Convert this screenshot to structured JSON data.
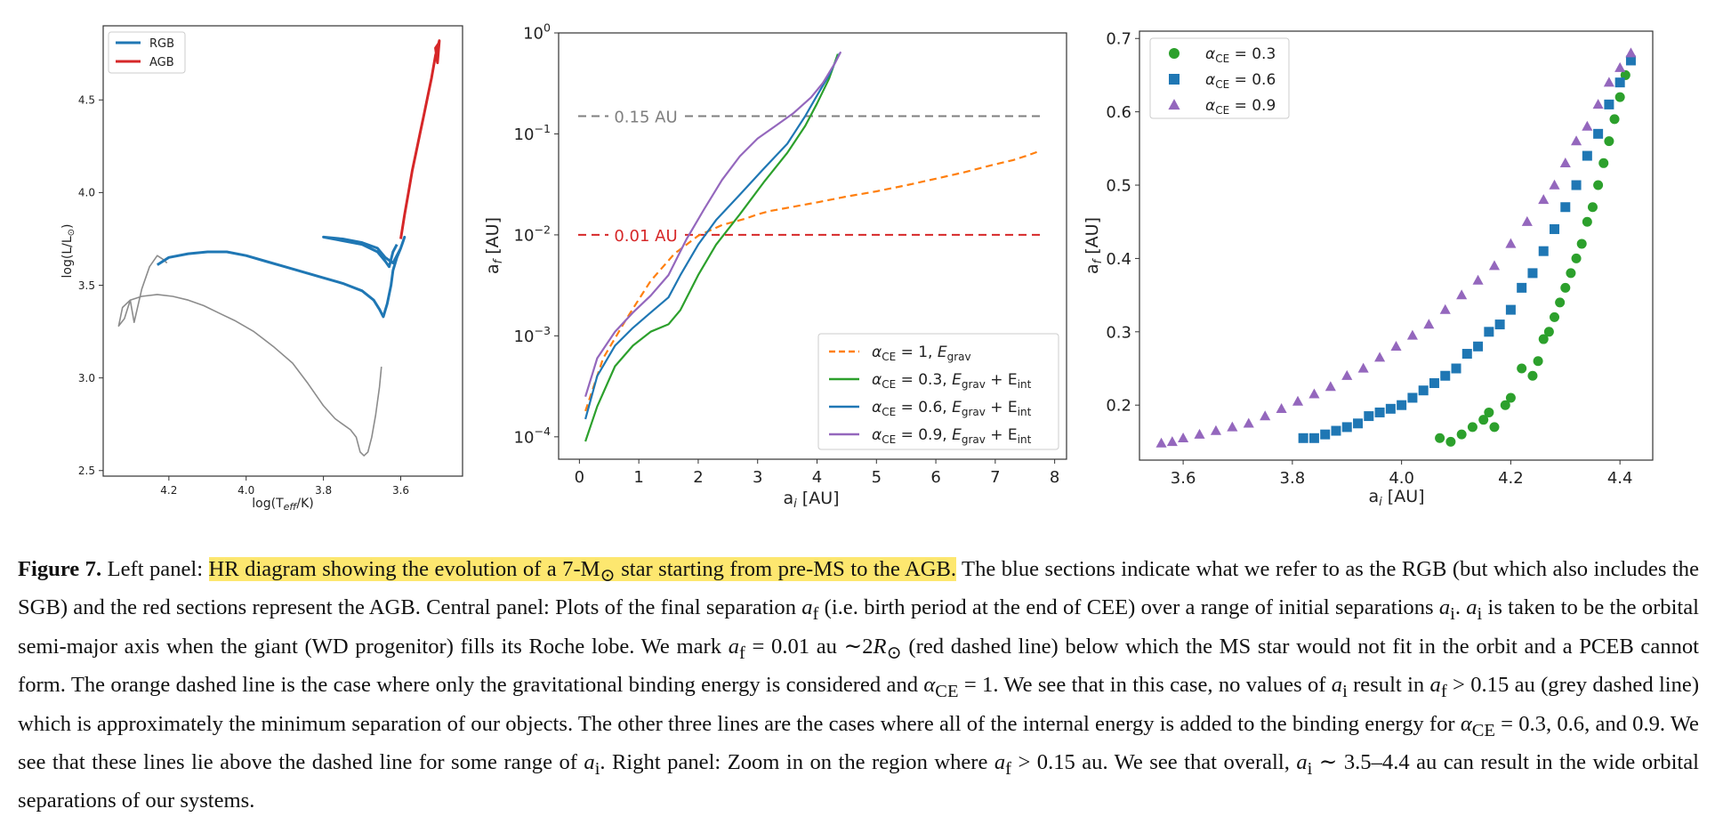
{
  "chart_data": [
    {
      "type": "line",
      "panel": "left",
      "xlabel": "log(T",
      "xlabel_sub": "eff",
      "xlabel_end": "/K)",
      "ylabel": "log(L/L",
      "ylabel_end": ")",
      "xlim": [
        4.37,
        3.44
      ],
      "ylim": [
        2.47,
        4.9
      ],
      "x_axis_inverted": true,
      "xticks": [
        4.2,
        4.0,
        3.8,
        3.6
      ],
      "xtick_labels": [
        "4.2",
        "4.0",
        "3.8",
        "3.6"
      ],
      "yticks": [
        2.5,
        3.0,
        3.5,
        4.0,
        4.5
      ],
      "ytick_labels": [
        "2.5",
        "3.0",
        "3.5",
        "4.0",
        "4.5"
      ],
      "legend": {
        "position": "upper-left",
        "entries": [
          {
            "label": "RGB",
            "color": "#1f77b4"
          },
          {
            "label": "AGB",
            "color": "#d62728"
          }
        ]
      },
      "series": [
        {
          "name": "",
          "color": "#8c8c8c",
          "x": [
            3.65,
            3.655,
            3.665,
            3.675,
            3.685,
            3.695,
            3.705,
            3.715,
            3.73,
            3.75,
            3.77,
            3.8,
            3.84,
            3.88,
            3.93,
            3.98,
            4.03,
            4.07,
            4.11,
            4.15,
            4.19,
            4.23,
            4.27,
            4.3,
            4.32,
            4.33,
            4.315,
            4.3,
            4.29,
            4.27,
            4.25,
            4.23,
            4.215,
            4.205
          ],
          "y": [
            3.06,
            2.95,
            2.8,
            2.68,
            2.6,
            2.58,
            2.6,
            2.68,
            2.72,
            2.75,
            2.78,
            2.85,
            2.97,
            3.08,
            3.17,
            3.25,
            3.31,
            3.35,
            3.39,
            3.42,
            3.44,
            3.45,
            3.44,
            3.42,
            3.38,
            3.28,
            3.32,
            3.42,
            3.3,
            3.48,
            3.6,
            3.66,
            3.64,
            3.62
          ]
        },
        {
          "name": "RGB",
          "color": "#1f77b4",
          "x": [
            4.23,
            4.2,
            4.15,
            4.1,
            4.05,
            4.0,
            3.95,
            3.9,
            3.85,
            3.8,
            3.75,
            3.7,
            3.67,
            3.655,
            3.645,
            3.635,
            3.625,
            3.62,
            3.61,
            3.6,
            3.595,
            3.59,
            3.6,
            3.62,
            3.64,
            3.66,
            3.7,
            3.75,
            3.8,
            3.75,
            3.7,
            3.66,
            3.64,
            3.63,
            3.62,
            3.61
          ],
          "y": [
            3.61,
            3.65,
            3.67,
            3.68,
            3.68,
            3.66,
            3.63,
            3.6,
            3.57,
            3.54,
            3.51,
            3.47,
            3.42,
            3.37,
            3.33,
            3.4,
            3.5,
            3.58,
            3.65,
            3.7,
            3.73,
            3.76,
            3.7,
            3.62,
            3.65,
            3.7,
            3.73,
            3.75,
            3.76,
            3.74,
            3.72,
            3.68,
            3.63,
            3.6,
            3.68,
            3.72
          ]
        },
        {
          "name": "AGB",
          "color": "#d62728",
          "x": [
            3.6,
            3.59,
            3.58,
            3.57,
            3.56,
            3.55,
            3.54,
            3.53,
            3.52,
            3.515,
            3.51,
            3.505,
            3.5,
            3.505,
            3.51,
            3.5
          ],
          "y": [
            3.75,
            3.88,
            4.0,
            4.12,
            4.22,
            4.32,
            4.42,
            4.52,
            4.62,
            4.68,
            4.74,
            4.78,
            4.82,
            4.7,
            4.78,
            4.81
          ]
        }
      ]
    },
    {
      "type": "line",
      "panel": "center",
      "xlabel": "a",
      "xlabel_sub": "i",
      "xlabel_end": " [AU]",
      "ylabel": "a",
      "ylabel_sub": "f",
      "ylabel_end": " [AU]",
      "y_scale": "log",
      "xlim": [
        -0.35,
        8.2
      ],
      "ylim": [
        6e-05,
        1.0
      ],
      "xticks": [
        0,
        1,
        2,
        3,
        4,
        5,
        6,
        7,
        8
      ],
      "xtick_labels": [
        "0",
        "1",
        "2",
        "3",
        "4",
        "5",
        "6",
        "7",
        "8"
      ],
      "yticks": [
        0.0001,
        0.001,
        0.01,
        0.1,
        1
      ],
      "ytick_labels": [
        {
          "base": "10",
          "exp": "−4"
        },
        {
          "base": "10",
          "exp": "−3"
        },
        {
          "base": "10",
          "exp": "−2"
        },
        {
          "base": "10",
          "exp": "−1"
        },
        {
          "base": "10",
          "exp": "0"
        }
      ],
      "hlines": [
        {
          "y": 0.15,
          "color": "#7f7f7f",
          "label": "0.15 AU"
        },
        {
          "y": 0.01,
          "color": "#d62728",
          "label": "0.01 AU"
        }
      ],
      "legend": {
        "position": "lower-right",
        "entries": [
          {
            "text": "α",
            "sub": "CE",
            "mid": " = 1, ",
            "e1": "E",
            "e1sub": "grav",
            "e2": "",
            "e2sub": ""
          },
          {
            "text": "α",
            "sub": "CE",
            "mid": " = 0.3, ",
            "e1": "E",
            "e1sub": "grav",
            "e2": " + E",
            "e2sub": "int"
          },
          {
            "text": "α",
            "sub": "CE",
            "mid": " = 0.6, ",
            "e1": "E",
            "e1sub": "grav",
            "e2": " + E",
            "e2sub": "int"
          },
          {
            "text": "α",
            "sub": "CE",
            "mid": " = 0.9, ",
            "e1": "E",
            "e1sub": "grav",
            "e2": " + E",
            "e2sub": "int"
          }
        ]
      },
      "series": [
        {
          "color": "#ff7f0e",
          "dashed": true,
          "x": [
            0.1,
            0.4,
            0.8,
            1.2,
            1.6,
            2.0,
            2.4,
            2.8,
            3.0,
            3.2,
            3.6,
            4.0,
            4.5,
            5.0,
            5.5,
            6.0,
            6.5,
            7.0,
            7.3,
            7.5,
            7.7
          ],
          "y": [
            0.00018,
            0.0006,
            0.0015,
            0.0035,
            0.0065,
            0.0098,
            0.0125,
            0.0145,
            0.016,
            0.0172,
            0.019,
            0.021,
            0.024,
            0.027,
            0.031,
            0.036,
            0.042,
            0.05,
            0.055,
            0.06,
            0.066
          ]
        },
        {
          "color": "#2ca02c",
          "x": [
            0.1,
            0.3,
            0.6,
            0.9,
            1.2,
            1.5,
            1.7,
            2.0,
            2.3,
            2.7,
            3.1,
            3.5,
            3.8,
            4.0,
            4.2,
            4.35
          ],
          "y": [
            9e-05,
            0.0002,
            0.0005,
            0.0008,
            0.0011,
            0.0013,
            0.0018,
            0.004,
            0.008,
            0.016,
            0.033,
            0.065,
            0.12,
            0.2,
            0.35,
            0.62
          ]
        },
        {
          "color": "#1f77b4",
          "x": [
            0.1,
            0.3,
            0.6,
            0.9,
            1.2,
            1.5,
            1.7,
            2.0,
            2.3,
            2.7,
            3.1,
            3.5,
            3.8,
            4.0,
            4.2,
            4.38
          ],
          "y": [
            0.00015,
            0.0004,
            0.0008,
            0.0012,
            0.0017,
            0.0024,
            0.004,
            0.008,
            0.014,
            0.025,
            0.045,
            0.08,
            0.15,
            0.24,
            0.38,
            0.63
          ]
        },
        {
          "color": "#9467bd",
          "x": [
            0.1,
            0.3,
            0.6,
            0.9,
            1.2,
            1.5,
            1.8,
            2.1,
            2.4,
            2.7,
            3.0,
            3.3,
            3.6,
            3.9,
            4.1,
            4.3,
            4.4
          ],
          "y": [
            0.00025,
            0.0006,
            0.0011,
            0.0017,
            0.0025,
            0.004,
            0.009,
            0.018,
            0.035,
            0.06,
            0.09,
            0.12,
            0.16,
            0.23,
            0.32,
            0.5,
            0.65
          ]
        }
      ]
    },
    {
      "type": "scatter",
      "panel": "right",
      "xlabel": "a",
      "xlabel_sub": "i",
      "xlabel_end": " [AU]",
      "ylabel": "a",
      "ylabel_sub": "f",
      "ylabel_end": " [AU]",
      "xlim": [
        3.52,
        4.46
      ],
      "ylim": [
        0.125,
        0.71
      ],
      "xticks": [
        3.6,
        3.8,
        4.0,
        4.2,
        4.4
      ],
      "xtick_labels": [
        "3.6",
        "3.8",
        "4.0",
        "4.2",
        "4.4"
      ],
      "yticks": [
        0.2,
        0.3,
        0.4,
        0.5,
        0.6,
        0.7
      ],
      "ytick_labels": [
        "0.2",
        "0.3",
        "0.4",
        "0.5",
        "0.6",
        "0.7"
      ],
      "legend": {
        "position": "upper-left",
        "entries": [
          {
            "text": "α",
            "sub": "CE",
            "mid": " = 0.3",
            "color": "#2ca02c",
            "marker": "circle"
          },
          {
            "text": "α",
            "sub": "CE",
            "mid": " = 0.6",
            "color": "#1f77b4",
            "marker": "square"
          },
          {
            "text": "α",
            "sub": "CE",
            "mid": " = 0.9",
            "color": "#9467bd",
            "marker": "triangle"
          }
        ]
      },
      "series": [
        {
          "color": "#2ca02c",
          "marker": "circle",
          "x": [
            4.07,
            4.09,
            4.11,
            4.13,
            4.15,
            4.16,
            4.17,
            4.19,
            4.2,
            4.22,
            4.24,
            4.25,
            4.26,
            4.27,
            4.28,
            4.29,
            4.3,
            4.31,
            4.32,
            4.33,
            4.34,
            4.35,
            4.36,
            4.37,
            4.38,
            4.39,
            4.4,
            4.41
          ],
          "y": [
            0.155,
            0.15,
            0.16,
            0.17,
            0.18,
            0.19,
            0.17,
            0.2,
            0.21,
            0.25,
            0.24,
            0.26,
            0.29,
            0.3,
            0.32,
            0.34,
            0.36,
            0.38,
            0.4,
            0.42,
            0.45,
            0.47,
            0.5,
            0.53,
            0.56,
            0.59,
            0.62,
            0.65
          ]
        },
        {
          "color": "#1f77b4",
          "marker": "square",
          "x": [
            3.82,
            3.84,
            3.86,
            3.88,
            3.9,
            3.92,
            3.94,
            3.96,
            3.98,
            4.0,
            4.02,
            4.04,
            4.06,
            4.08,
            4.1,
            4.12,
            4.14,
            4.16,
            4.18,
            4.2,
            4.22,
            4.24,
            4.26,
            4.28,
            4.3,
            4.32,
            4.34,
            4.36,
            4.38,
            4.4,
            4.42
          ],
          "y": [
            0.155,
            0.155,
            0.16,
            0.165,
            0.17,
            0.175,
            0.185,
            0.19,
            0.195,
            0.2,
            0.21,
            0.22,
            0.23,
            0.24,
            0.25,
            0.27,
            0.28,
            0.3,
            0.31,
            0.33,
            0.36,
            0.38,
            0.41,
            0.44,
            0.47,
            0.5,
            0.54,
            0.57,
            0.61,
            0.64,
            0.67
          ]
        },
        {
          "color": "#9467bd",
          "marker": "triangle",
          "x": [
            3.56,
            3.58,
            3.6,
            3.63,
            3.66,
            3.69,
            3.72,
            3.75,
            3.78,
            3.81,
            3.84,
            3.87,
            3.9,
            3.93,
            3.96,
            3.99,
            4.02,
            4.05,
            4.08,
            4.11,
            4.14,
            4.17,
            4.2,
            4.23,
            4.26,
            4.28,
            4.3,
            4.32,
            4.34,
            4.36,
            4.38,
            4.4,
            4.42
          ],
          "y": [
            0.148,
            0.15,
            0.155,
            0.16,
            0.165,
            0.17,
            0.175,
            0.185,
            0.195,
            0.205,
            0.215,
            0.225,
            0.24,
            0.25,
            0.265,
            0.28,
            0.295,
            0.31,
            0.33,
            0.35,
            0.37,
            0.39,
            0.42,
            0.45,
            0.48,
            0.5,
            0.53,
            0.56,
            0.58,
            0.61,
            0.64,
            0.66,
            0.68
          ]
        }
      ]
    }
  ],
  "caption": {
    "label": "Figure 7.",
    "s1": " Left panel: ",
    "highlight_a": "HR diagram showing the evolution of a 7-M",
    "sun": "⊙",
    "highlight_b": " star starting from pre-MS to the AGB.",
    "s2": " The blue sections indicate what we refer to as the RGB (but which also includes the SGB) and the red sections represent the AGB. Central panel: Plots of the final separation ",
    "af": "a",
    "f": "f",
    "s3": " (i.e. birth period at the end of CEE) over a range of initial separations ",
    "ai": "a",
    "i": "i",
    "s4": ". ",
    "s5": " is taken to be the orbital semi-major axis when the giant (WD progenitor) fills its Roche lobe. We mark ",
    "s6": " = 0.01 au ∼2",
    "R": "R",
    "s7": " (red dashed line) below which the MS star would not fit in the orbit and a PCEB cannot form. The orange dashed line is the case where only the gravitational binding energy is considered and ",
    "alpha": "α",
    "CE": "CE",
    "s8": " = 1. We see that in this case, no values of ",
    "s9": " result in ",
    "s10": " > 0.15 au (grey dashed line) which is approximately the minimum separation of our objects. The other three lines are the cases where all of the internal energy is added to the binding energy for ",
    "s11": " = 0.3, 0.6, and 0.9. We see that these lines lie above the dashed line for some range of ",
    "s12": ". Right panel: Zoom in on the region where ",
    "s13": " > 0.15 au. We see that overall, ",
    "s14": " ∼ 3.5–4.4 au can result in the wide orbital separations of our systems."
  }
}
